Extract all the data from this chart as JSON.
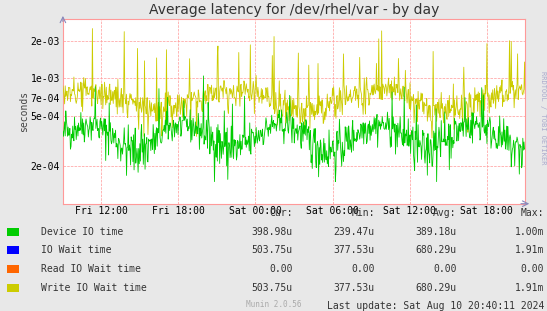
{
  "title": "Average latency for /dev/rhel/var - by day",
  "ylabel": "seconds",
  "background_color": "#e8e8e8",
  "plot_bg_color": "#ffffff",
  "grid_color": "#ff9999",
  "xtick_labels": [
    "Fri 12:00",
    "Fri 18:00",
    "Sat 00:00",
    "Sat 06:00",
    "Sat 12:00",
    "Sat 18:00"
  ],
  "ytick_labels": [
    "2e-04",
    "5e-04",
    "7e-04",
    "1e-03",
    "2e-03"
  ],
  "ytick_values": [
    0.0002,
    0.0005,
    0.0007,
    0.001,
    0.002
  ],
  "ymin": 0.0001,
  "ymax": 0.003,
  "watermark": "RRDTOOL / TOBI OETIKER",
  "legend": [
    {
      "label": "Device IO time",
      "color": "#00cc00"
    },
    {
      "label": "IO Wait time",
      "color": "#0000ff"
    },
    {
      "label": "Read IO Wait time",
      "color": "#ff6600"
    },
    {
      "label": "Write IO Wait time",
      "color": "#cccc00"
    }
  ],
  "stats_header": [
    "Cur:",
    "Min:",
    "Avg:",
    "Max:"
  ],
  "stats": [
    [
      "398.98u",
      "239.47u",
      "389.18u",
      "1.00m"
    ],
    [
      "503.75u",
      "377.53u",
      "680.29u",
      "1.91m"
    ],
    [
      "0.00",
      "0.00",
      "0.00",
      "0.00"
    ],
    [
      "503.75u",
      "377.53u",
      "680.29u",
      "1.91m"
    ]
  ],
  "last_update": "Last update: Sat Aug 10 20:40:11 2024",
  "munin_version": "Munin 2.0.56",
  "title_fontsize": 10,
  "axis_fontsize": 7,
  "legend_fontsize": 7
}
